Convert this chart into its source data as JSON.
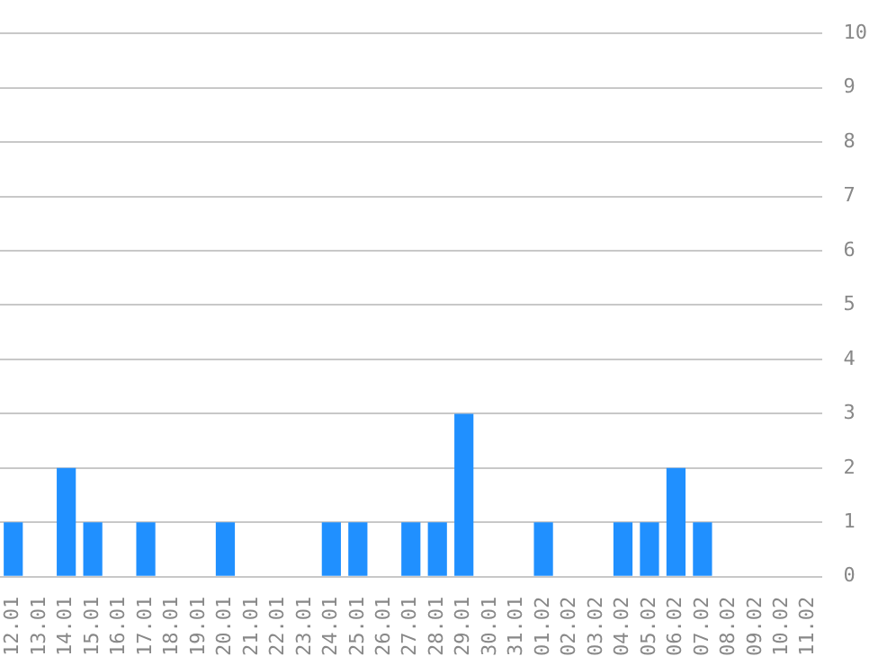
{
  "chart_data": {
    "type": "bar",
    "categories": [
      "12.01",
      "13.01",
      "14.01",
      "15.01",
      "16.01",
      "17.01",
      "18.01",
      "19.01",
      "20.01",
      "21.01",
      "22.01",
      "23.01",
      "24.01",
      "25.01",
      "26.01",
      "27.01",
      "28.01",
      "29.01",
      "30.01",
      "31.01",
      "01.02",
      "02.02",
      "03.02",
      "04.02",
      "05.02",
      "06.02",
      "07.02",
      "08.02",
      "09.02",
      "10.02",
      "11.02"
    ],
    "values": [
      1,
      0,
      2,
      1,
      0,
      1,
      0,
      0,
      1,
      0,
      0,
      0,
      1,
      1,
      0,
      1,
      1,
      3,
      0,
      0,
      1,
      0,
      0,
      1,
      1,
      2,
      1,
      0,
      0,
      0,
      0
    ],
    "color": "#2090ff",
    "ylim": [
      0,
      10
    ],
    "yticks": [
      0,
      1,
      2,
      3,
      4,
      5,
      6,
      7,
      8,
      9,
      10
    ],
    "grid": "y",
    "legend": false
  }
}
